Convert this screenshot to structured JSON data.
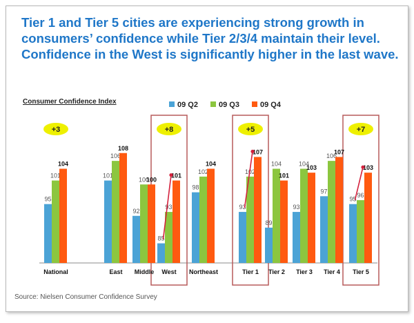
{
  "headline": "Tier 1 and Tier 5 cities are experiencing strong growth in consumers’ confidence while Tier 2/3/4 maintain their level. Confidence in the West is significantly higher in the last wave.",
  "source": "Source: Nielsen Consumer Confidence Survey",
  "colors": {
    "q2": "#4ba3d6",
    "q3": "#8cc63f",
    "q4": "#ff5a10",
    "badge": "#eef000",
    "highlight": "#b75a5a"
  },
  "chart_data": {
    "type": "bar",
    "title": "Consumer Confidence Index",
    "categories": [
      "National",
      "East",
      "Middle",
      "West",
      "Northeast",
      "Tier 1",
      "Tier 2",
      "Tier 3",
      "Tier 4",
      "Tier 5"
    ],
    "series": [
      {
        "name": "09 Q2",
        "values": [
          95,
          101,
          92,
          85,
          98,
          93,
          89,
          93,
          97,
          95
        ]
      },
      {
        "name": "09 Q3",
        "values": [
          101,
          106,
          100,
          93,
          102,
          102,
          104,
          104,
          106,
          96
        ]
      },
      {
        "name": "09 Q4",
        "values": [
          104,
          108,
          100,
          101,
          104,
          107,
          101,
          103,
          107,
          103
        ]
      }
    ],
    "ylim": [
      80,
      112
    ],
    "legend_position": "top",
    "annotations": [
      {
        "category": "National",
        "text": "+3"
      },
      {
        "category": "West",
        "text": "+8"
      },
      {
        "category": "Tier 1",
        "text": "+5"
      },
      {
        "category": "Tier 5",
        "text": "+7"
      }
    ],
    "highlighted_categories": [
      "West",
      "Tier 1",
      "Tier 5"
    ],
    "growth_arrows": [
      "West",
      "Tier 1",
      "Tier 5"
    ]
  }
}
